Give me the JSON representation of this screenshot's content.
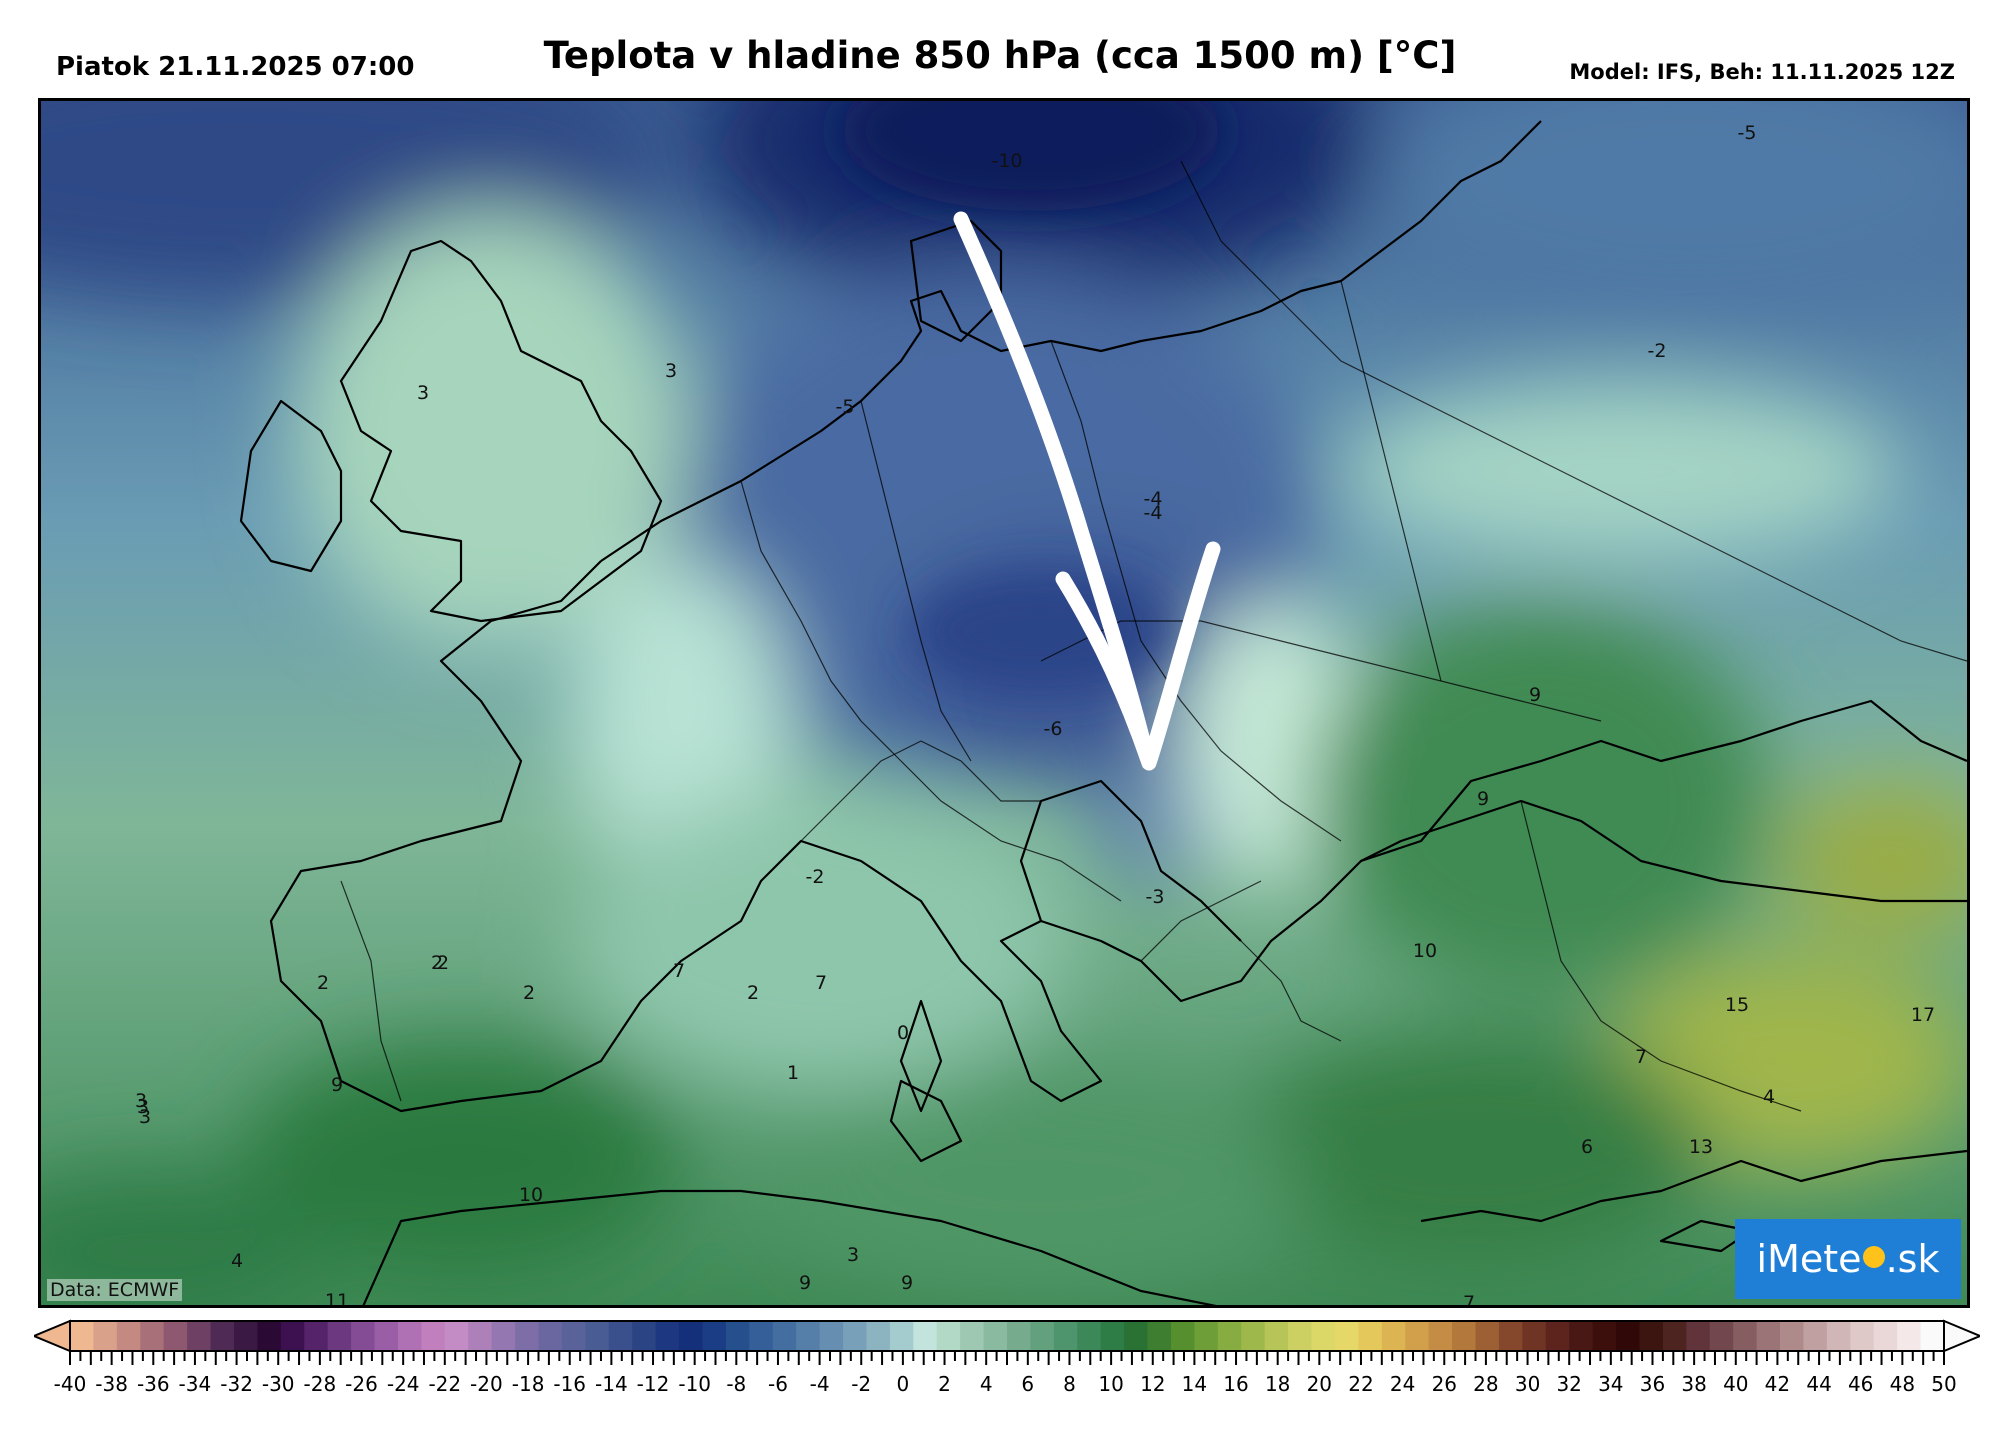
{
  "header": {
    "date": "Piatok 21.11.2025 07:00",
    "title": "Teplota v hladine 850 hPa (cca 1500 m) [°C]",
    "model": "Model: IFS, Beh: 11.11.2025 12Z"
  },
  "map": {
    "data_credit": "Data: ECMWF",
    "brand": {
      "pre": "iMete",
      "post": ".sk",
      "logo_icon": "sun-icon"
    },
    "arrow_icon": "hand-drawn-white-arrow-southward",
    "contour_labels": [
      "-10",
      "-5",
      "-5",
      "-2",
      "3",
      "3",
      "-4",
      "-4",
      "-6",
      "-2",
      "-3",
      "9",
      "9",
      "10",
      "2",
      "2",
      "2",
      "2",
      "7",
      "2",
      "7",
      "0",
      "1",
      "3",
      "3",
      "3",
      "9",
      "10",
      "4",
      "11",
      "3",
      "9",
      "9",
      "7",
      "6",
      "13",
      "15",
      "17",
      "4",
      "7"
    ]
  },
  "colorbar": {
    "ticks": [
      "-40",
      "-38",
      "-36",
      "-34",
      "-32",
      "-30",
      "-28",
      "-26",
      "-24",
      "-22",
      "-20",
      "-18",
      "-16",
      "-14",
      "-12",
      "-10",
      "-8",
      "-6",
      "-4",
      "-2",
      "0",
      "2",
      "4",
      "6",
      "8",
      "10",
      "12",
      "14",
      "16",
      "18",
      "20",
      "22",
      "24",
      "26",
      "28",
      "30",
      "32",
      "34",
      "36",
      "38",
      "40",
      "42",
      "44",
      "46",
      "48",
      "50"
    ],
    "colors": [
      "#f0b890",
      "#d9a08a",
      "#c48a82",
      "#a87078",
      "#8d5870",
      "#6d4064",
      "#4e2a55",
      "#3a1a45",
      "#2a0a35",
      "#3d1050",
      "#54236a",
      "#6c3880",
      "#844c94",
      "#9a5ea6",
      "#b070b4",
      "#c27fbe",
      "#c48cc4",
      "#ad80ba",
      "#9476b0",
      "#7e6ea8",
      "#6a66a0",
      "#5a629a",
      "#4a5c94",
      "#3a508c",
      "#2a4484",
      "#1d3880",
      "#14307a",
      "#1b3d86",
      "#264f8e",
      "#345f98",
      "#446ea0",
      "#557ea8",
      "#668eb0",
      "#78a0b8",
      "#8cb4c0",
      "#a4ccce",
      "#c2e4dc",
      "#b2d8c6",
      "#9ec8b2",
      "#8abaa0",
      "#76ab8e",
      "#62a07e",
      "#4e946c",
      "#3c8858",
      "#2e7c46",
      "#2a7234",
      "#3e7e30",
      "#56902e",
      "#6e9e38",
      "#86ac42",
      "#9eb84c",
      "#b6c458",
      "#ccd062",
      "#dcd868",
      "#e6d868",
      "#e4c85c",
      "#dcb452",
      "#d2a04a",
      "#c48c44",
      "#b2783c",
      "#9c6034",
      "#86482c",
      "#703424",
      "#5c241c",
      "#4a1814",
      "#3c0e0c",
      "#300808",
      "#3c1410",
      "#4e2420",
      "#60343a",
      "#72484e",
      "#865e62",
      "#9a7476",
      "#ae8a8a",
      "#c0a0a0",
      "#d0b6b6",
      "#dec8c8",
      "#ead8d8",
      "#f4e8e8",
      "#fafafa"
    ]
  },
  "labels": {
    "brand_pre": "iMete",
    "brand_post": ".sk"
  }
}
